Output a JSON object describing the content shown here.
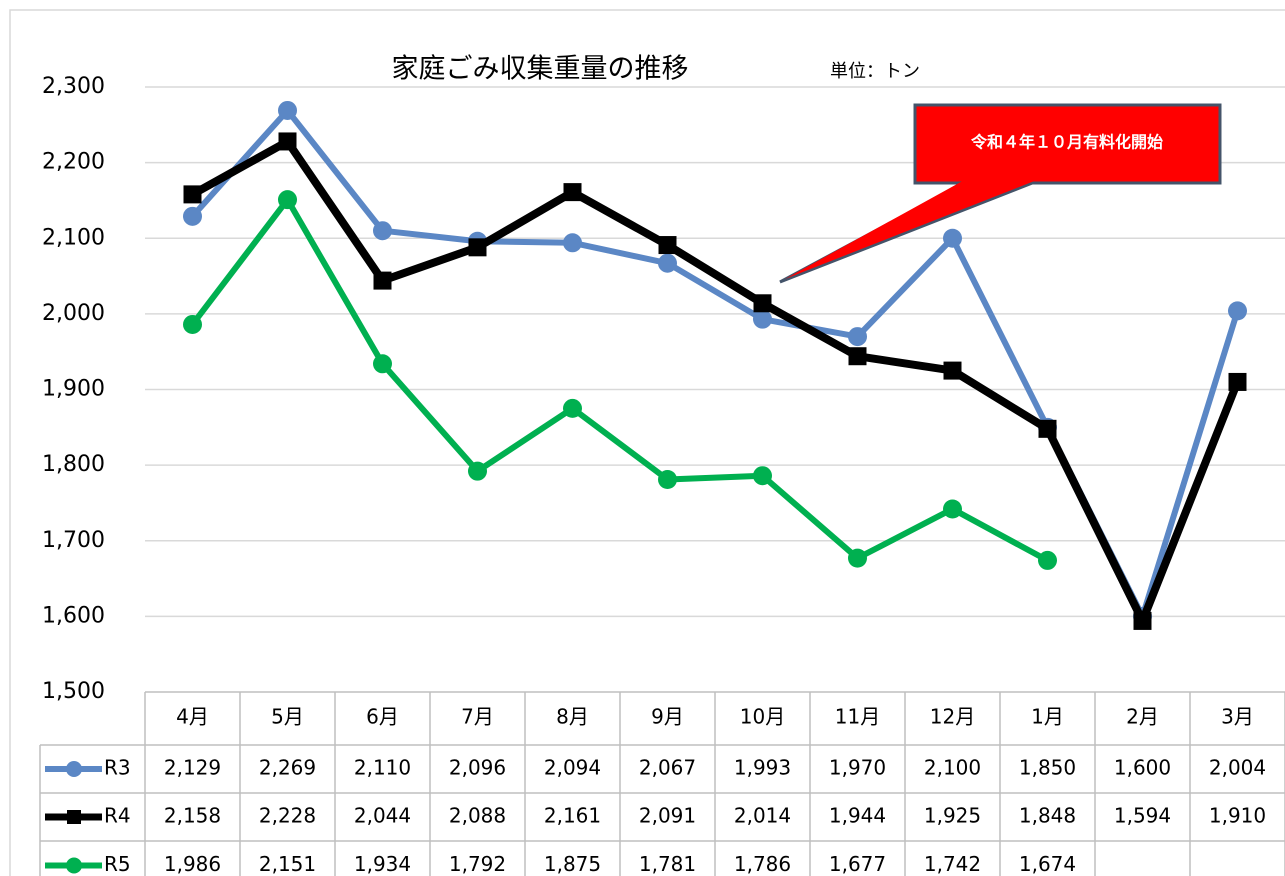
{
  "chart_data": {
    "type": "line",
    "title": "家庭ごみ収集重量の推移",
    "subtitle": "単位：トン",
    "annotation": "令和４年１０月有料化開始",
    "categories": [
      "4月",
      "5月",
      "6月",
      "7月",
      "8月",
      "9月",
      "10月",
      "11月",
      "12月",
      "1月",
      "2月",
      "3月"
    ],
    "series": [
      {
        "name": "R3",
        "color": "#5b87c5",
        "marker": "circle",
        "values": [
          2129,
          2269,
          2110,
          2096,
          2094,
          2067,
          1993,
          1970,
          2100,
          1850,
          1600,
          2004
        ],
        "value_labels": [
          "2,129",
          "2,269",
          "2,110",
          "2,096",
          "2,094",
          "2,067",
          "1,993",
          "1,970",
          "2,100",
          "1,850",
          "1,600",
          "2,004"
        ]
      },
      {
        "name": "R4",
        "color": "#000000",
        "marker": "square",
        "values": [
          2158,
          2228,
          2044,
          2088,
          2161,
          2091,
          2014,
          1944,
          1925,
          1848,
          1594,
          1910
        ],
        "value_labels": [
          "2,158",
          "2,228",
          "2,044",
          "2,088",
          "2,161",
          "2,091",
          "2,014",
          "1,944",
          "1,925",
          "1,848",
          "1,594",
          "1,910"
        ]
      },
      {
        "name": "R5",
        "color": "#00b050",
        "marker": "circle",
        "values": [
          1986,
          2151,
          1934,
          1792,
          1875,
          1781,
          1786,
          1677,
          1742,
          1674,
          null,
          null
        ],
        "value_labels": [
          "1,986",
          "2,151",
          "1,934",
          "1,792",
          "1,875",
          "1,781",
          "1,786",
          "1,677",
          "1,742",
          "1,674",
          null,
          null
        ]
      }
    ],
    "ylim": [
      1500,
      2300
    ],
    "yticks": [
      {
        "value": 1500,
        "label": "1,500"
      },
      {
        "value": 1600,
        "label": "1,600"
      },
      {
        "value": 1700,
        "label": "1,700"
      },
      {
        "value": 1800,
        "label": "1,800"
      },
      {
        "value": 1900,
        "label": "1,900"
      },
      {
        "value": 2000,
        "label": "2,000"
      },
      {
        "value": 2100,
        "label": "2,100"
      },
      {
        "value": 2200,
        "label": "2,200"
      },
      {
        "value": 2300,
        "label": "2,300"
      }
    ],
    "grid": true
  }
}
